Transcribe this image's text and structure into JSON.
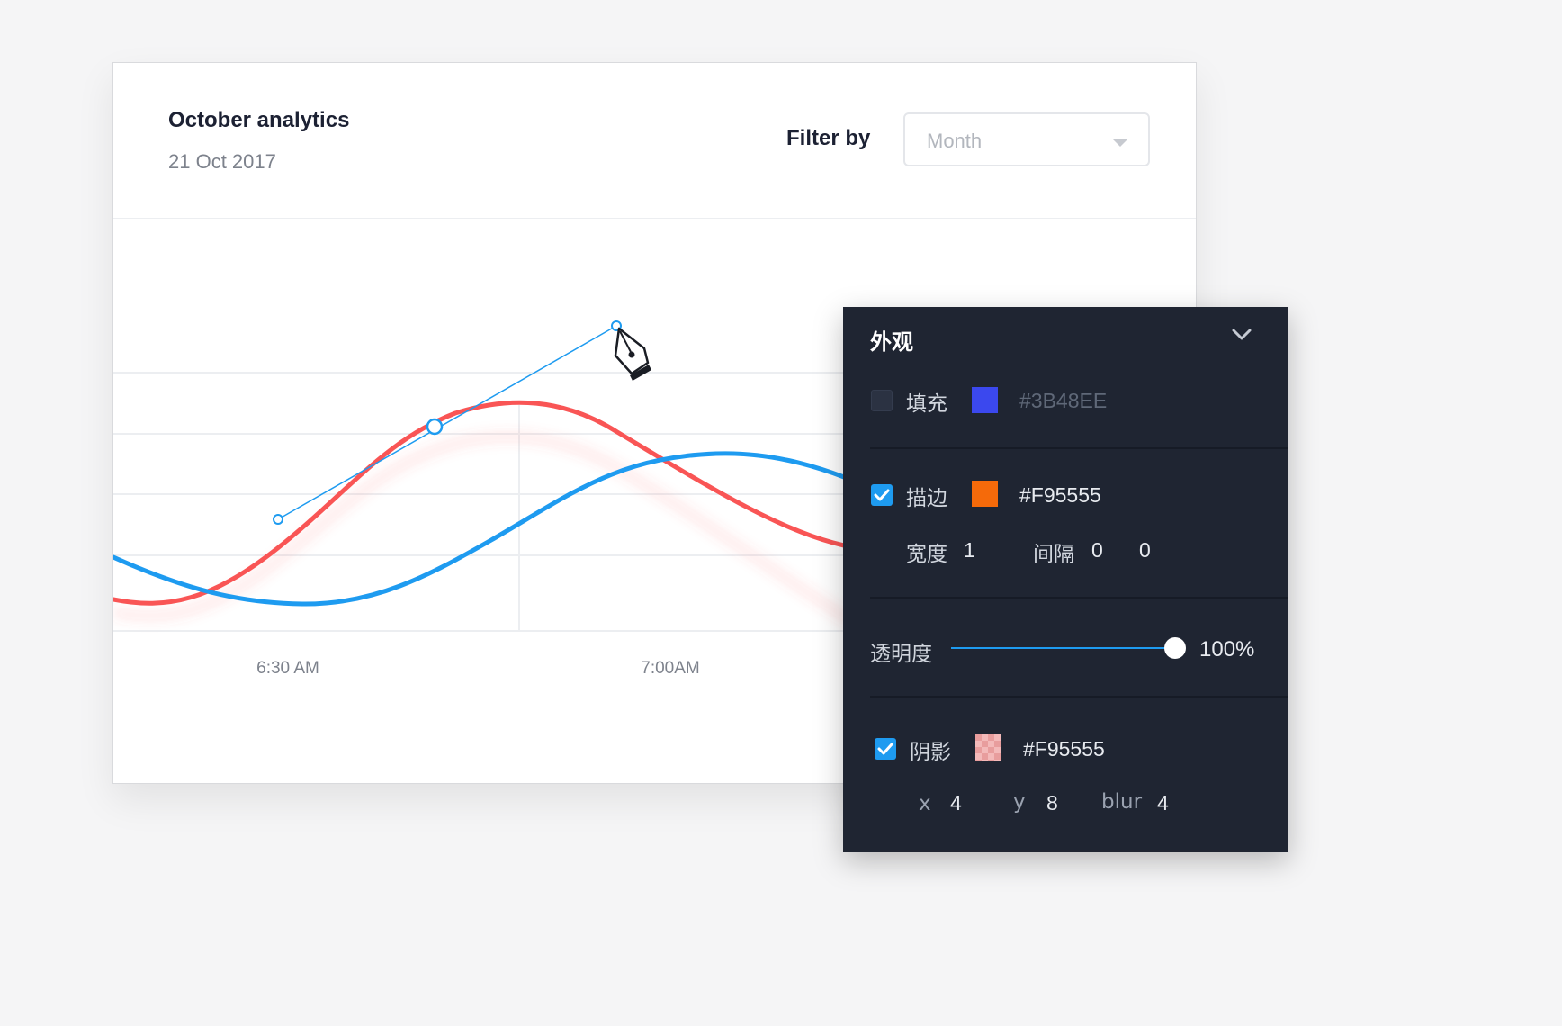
{
  "card": {
    "title": "October analytics",
    "subtitle": "21 Oct 2017",
    "filter_label": "Filter by",
    "filter_value": "Month"
  },
  "chart_data": {
    "type": "line",
    "x_tick_labels": [
      "6:30 AM",
      "7:00AM"
    ],
    "series": [
      {
        "color": "#F95555",
        "points": [
          [
            0,
            0.12
          ],
          [
            0.1,
            0.05
          ],
          [
            0.28,
            0.55
          ],
          [
            0.38,
            0.94
          ],
          [
            0.48,
            0.78
          ],
          [
            0.62,
            0.42
          ],
          [
            0.68,
            0.3
          ]
        ]
      },
      {
        "color": "#1E9BF0",
        "points": [
          [
            0,
            0.32
          ],
          [
            0.17,
            0.1
          ],
          [
            0.4,
            0.3
          ],
          [
            0.56,
            0.72
          ],
          [
            0.67,
            0.75
          ],
          [
            0.68,
            0.72
          ]
        ]
      }
    ],
    "grid": true
  },
  "panel": {
    "title": "外观",
    "fill": {
      "label": "填充",
      "checked": false,
      "color": "#3B48EE",
      "hex": "#3B48EE"
    },
    "stroke": {
      "label": "描边",
      "checked": true,
      "color": "#F95555",
      "hex": "#F95555",
      "width_label": "宽度",
      "width_value": "1",
      "gap_label": "间隔",
      "gap_value_1": "0",
      "gap_value_2": "0"
    },
    "opacity": {
      "label": "透明度",
      "value": "100%",
      "level": 1.0
    },
    "shadow": {
      "label": "阴影",
      "checked": true,
      "hex": "#F95555",
      "x_label": "x",
      "x_value": "4",
      "y_label": "y",
      "y_value": "8",
      "blur_label": "blur",
      "blur_value": "4"
    }
  },
  "icons": {
    "cursor": "pen-tool-icon",
    "collapse": "chevron-down-icon",
    "check": "check-icon"
  }
}
